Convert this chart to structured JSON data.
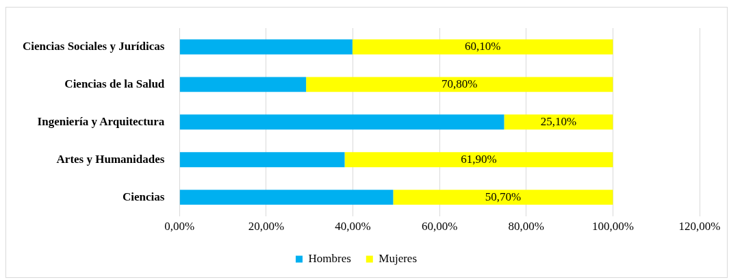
{
  "chart_data": {
    "type": "bar",
    "orientation": "horizontal",
    "stacked": true,
    "categories": [
      "Ciencias Sociales y Jurídicas",
      "Ciencias de la Salud",
      "Ingeniería y Arquitectura",
      "Artes y Humanidades",
      "Ciencias"
    ],
    "series": [
      {
        "name": "Hombres",
        "color": "#00b0f0",
        "values": [
          39.9,
          29.2,
          74.9,
          38.1,
          49.3
        ]
      },
      {
        "name": "Mujeres",
        "color": "#ffff00",
        "values": [
          60.1,
          70.8,
          25.1,
          61.9,
          50.7
        ],
        "value_labels": [
          "60,10%",
          "70,80%",
          "25,10%",
          "61,90%",
          "50,70%"
        ]
      }
    ],
    "xlim": [
      0,
      120
    ],
    "xticks": [
      {
        "value": 0,
        "label": "0,00%"
      },
      {
        "value": 20,
        "label": "20,00%"
      },
      {
        "value": 40,
        "label": "40,00%"
      },
      {
        "value": 60,
        "label": "60,00%"
      },
      {
        "value": 80,
        "label": "80,00%"
      },
      {
        "value": 100,
        "label": "100,00%"
      },
      {
        "value": 120,
        "label": "120,00%"
      }
    ],
    "grid": "x",
    "legend": "bottom"
  }
}
